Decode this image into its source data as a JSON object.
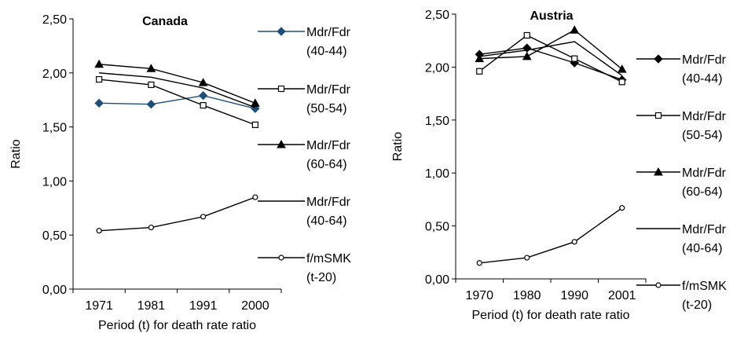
{
  "chart_data": [
    {
      "type": "line",
      "title": "Canada",
      "xlabel": "Period (t) for death rate ratio",
      "ylabel": "Ratio",
      "categories": [
        "1971",
        "1981",
        "1991",
        "2000"
      ],
      "ylim": [
        0,
        2.5
      ],
      "yticks": [
        "0,00",
        "0,50",
        "1,00",
        "1,50",
        "2,00",
        "2,50"
      ],
      "grid": false,
      "legend_position": "right",
      "series": [
        {
          "name": "Mdr/Fdr (40-44)",
          "label_lines": [
            "Mdr/Fdr",
            "(40-44)"
          ],
          "values": [
            1.72,
            1.71,
            1.79,
            1.67
          ],
          "color": "#1f4e79",
          "marker": "diamond-filled"
        },
        {
          "name": "Mdr/Fdr (50-54)",
          "label_lines": [
            "Mdr/Fdr",
            "(50-54)"
          ],
          "values": [
            1.94,
            1.89,
            1.7,
            1.52
          ],
          "color": "#000000",
          "marker": "square-open"
        },
        {
          "name": "Mdr/Fdr (60-64)",
          "label_lines": [
            "Mdr/Fdr",
            "(60-64)"
          ],
          "values": [
            2.08,
            2.04,
            1.91,
            1.72
          ],
          "color": "#000000",
          "marker": "triangle-filled"
        },
        {
          "name": "Mdr/Fdr (40-64)",
          "label_lines": [
            "Mdr/Fdr",
            "(40-64)"
          ],
          "values": [
            2.0,
            1.96,
            1.86,
            1.68
          ],
          "color": "#000000",
          "marker": "none"
        },
        {
          "name": "f/mSMK (t-20)",
          "label_lines": [
            "f/mSMK",
            "(t-20)"
          ],
          "values": [
            0.54,
            0.57,
            0.67,
            0.85
          ],
          "color": "#000000",
          "marker": "circle-open"
        }
      ]
    },
    {
      "type": "line",
      "title": "Austria",
      "xlabel": "Period (t) for death rate ratio",
      "ylabel": "Ratio",
      "categories": [
        "1970",
        "1980",
        "1990",
        "2001"
      ],
      "ylim": [
        0,
        2.5
      ],
      "yticks": [
        "0,00",
        "0,50",
        "1,00",
        "1,50",
        "2,00",
        "2,50"
      ],
      "grid": false,
      "legend_position": "right",
      "series": [
        {
          "name": "Mdr/Fdr (40-44)",
          "label_lines": [
            "Mdr/Fdr",
            "(40-44)"
          ],
          "values": [
            2.12,
            2.18,
            2.04,
            1.88
          ],
          "color": "#000000",
          "marker": "diamond-filled"
        },
        {
          "name": "Mdr/Fdr (50-54)",
          "label_lines": [
            "Mdr/Fdr",
            "(50-54)"
          ],
          "values": [
            1.96,
            2.3,
            2.08,
            1.86
          ],
          "color": "#000000",
          "marker": "square-open"
        },
        {
          "name": "Mdr/Fdr (60-64)",
          "label_lines": [
            "Mdr/Fdr",
            "(60-64)"
          ],
          "values": [
            2.08,
            2.1,
            2.35,
            1.98
          ],
          "color": "#000000",
          "marker": "triangle-filled"
        },
        {
          "name": "Mdr/Fdr (40-64)",
          "label_lines": [
            "Mdr/Fdr",
            "(40-64)"
          ],
          "values": [
            2.1,
            2.16,
            2.24,
            1.92
          ],
          "color": "#000000",
          "marker": "none"
        },
        {
          "name": "f/mSMK (t-20)",
          "label_lines": [
            "f/mSMK",
            "(t-20)"
          ],
          "values": [
            0.15,
            0.2,
            0.35,
            0.67
          ],
          "color": "#000000",
          "marker": "circle-open"
        }
      ]
    }
  ]
}
